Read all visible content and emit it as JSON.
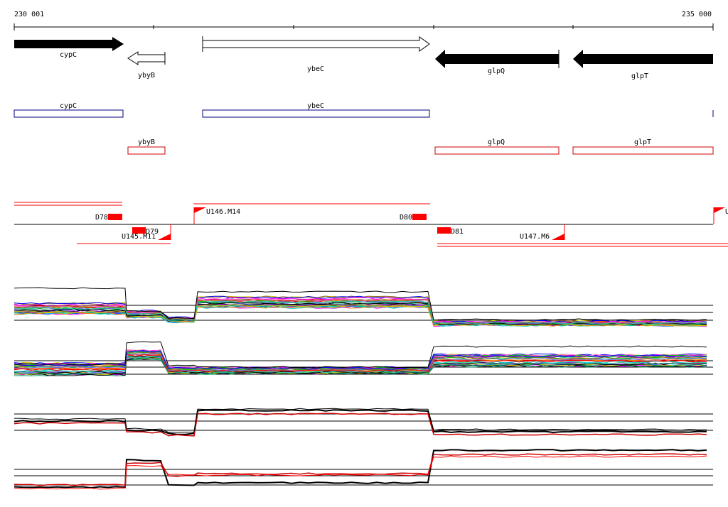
{
  "ruler": {
    "start_label": "230 001",
    "end_label": "235 000"
  },
  "genes": [
    {
      "name": "cypC",
      "strand": "+"
    },
    {
      "name": "ybyB",
      "strand": "-"
    },
    {
      "name": "ybeC",
      "strand": "+"
    },
    {
      "name": "glpQ",
      "strand": "-"
    },
    {
      "name": "glpT",
      "strand": "-"
    }
  ],
  "annotation_track_forward": [
    {
      "label": "cypC"
    },
    {
      "label": "ybeC"
    }
  ],
  "annotation_track_reverse": [
    {
      "label": "ybyB"
    },
    {
      "label": "glpQ"
    },
    {
      "label": "glpT"
    }
  ],
  "features": {
    "segments": [
      "D78",
      "D79",
      "D80",
      "D81"
    ],
    "transcription_units": [
      "U146.M14",
      "U145.M11",
      "U147.M6"
    ],
    "edge_label": "U"
  },
  "tracks": {
    "expression_panels": 4,
    "panel_styles": [
      "multicolor",
      "multicolor",
      "black-red",
      "black-red"
    ],
    "palette": [
      "#ff0000",
      "#00cc00",
      "#0000ff",
      "#ff00ff",
      "#00cccc",
      "#ff9900",
      "#9900cc",
      "#cccc00",
      "#009966",
      "#ff66cc",
      "#6666ff",
      "#000000",
      "#996633",
      "#33cc99"
    ]
  },
  "colors": {
    "gene_forward": "#000080",
    "gene_reverse": "#cc0000",
    "feature": "#ff0000",
    "axis": "#000000"
  }
}
